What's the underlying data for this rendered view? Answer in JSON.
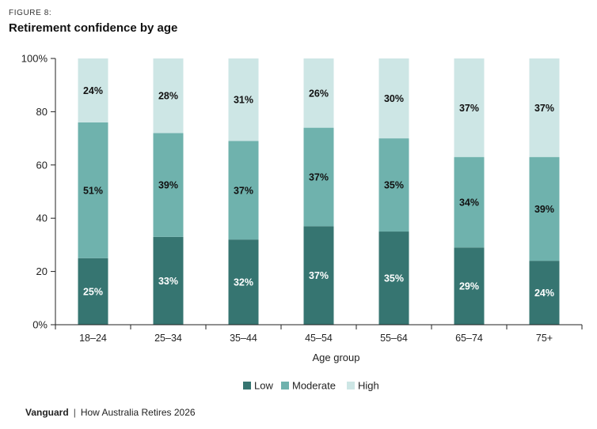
{
  "figure_label": "FIGURE 8:",
  "title": "Retirement confidence by age",
  "footer": {
    "brand": "Vanguard",
    "separator": "|",
    "publication": "How Australia Retires 2026"
  },
  "chart_data": {
    "type": "bar",
    "stacked": true,
    "categories": [
      "18–24",
      "25–34",
      "35–44",
      "45–54",
      "55–64",
      "65–74",
      "75+"
    ],
    "series": [
      {
        "name": "Low",
        "color": "#367571",
        "values": [
          25,
          33,
          32,
          37,
          35,
          29,
          24
        ]
      },
      {
        "name": "Moderate",
        "color": "#6fb2ad",
        "values": [
          51,
          39,
          37,
          37,
          35,
          34,
          39
        ]
      },
      {
        "name": "High",
        "color": "#cde6e5",
        "values": [
          24,
          28,
          31,
          26,
          30,
          37,
          37
        ]
      }
    ],
    "value_labels": [
      [
        "25%",
        "33%",
        "32%",
        "37%",
        "35%",
        "29%",
        "24%"
      ],
      [
        "51%",
        "39%",
        "37%",
        "37%",
        "35%",
        "34%",
        "39%"
      ],
      [
        "24%",
        "28%",
        "31%",
        "26%",
        "30%",
        "37%",
        "37%"
      ]
    ],
    "xlabel": "Age group",
    "ylabel": "",
    "ylim": [
      0,
      100
    ],
    "yticks": [
      0,
      20,
      40,
      60,
      80,
      100
    ],
    "ytick_labels": [
      "0%",
      "20",
      "40",
      "60",
      "80",
      "100%"
    ],
    "grid": false,
    "legend": "bottom-center"
  }
}
